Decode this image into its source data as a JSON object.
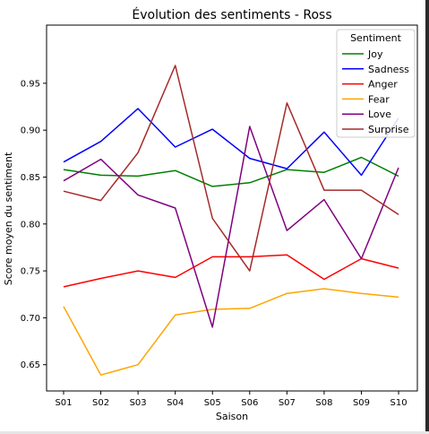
{
  "chart_data": {
    "type": "line",
    "title": "Évolution des sentiments - Ross",
    "xlabel": "Saison",
    "ylabel": "Score moyen du sentiment",
    "categories": [
      "S01",
      "S02",
      "S03",
      "S04",
      "S05",
      "S06",
      "S07",
      "S08",
      "S09",
      "S10"
    ],
    "ylim": [
      0.622,
      1.012
    ],
    "yticks": [
      "0.65",
      "0.70",
      "0.75",
      "0.80",
      "0.85",
      "0.90",
      "0.95"
    ],
    "grid": false,
    "legend": {
      "title": "Sentiment",
      "placement": "top-right"
    },
    "series": [
      {
        "name": "Joy",
        "color": "#008000",
        "values": [
          0.858,
          0.852,
          0.851,
          0.857,
          0.84,
          0.844,
          0.858,
          0.855,
          0.871,
          0.851
        ]
      },
      {
        "name": "Sadness",
        "color": "#0000ff",
        "values": [
          0.866,
          0.888,
          0.923,
          0.882,
          0.901,
          0.87,
          0.859,
          0.898,
          0.852,
          0.913
        ]
      },
      {
        "name": "Anger",
        "color": "#ff0000",
        "values": [
          0.733,
          0.742,
          0.75,
          0.743,
          0.765,
          0.765,
          0.767,
          0.741,
          0.763,
          0.753
        ]
      },
      {
        "name": "Fear",
        "color": "#ffa500",
        "values": [
          0.712,
          0.639,
          0.65,
          0.703,
          0.709,
          0.71,
          0.726,
          0.731,
          0.726,
          0.722
        ]
      },
      {
        "name": "Love",
        "color": "#800080",
        "values": [
          0.846,
          0.869,
          0.831,
          0.817,
          0.69,
          0.904,
          0.793,
          0.826,
          0.763,
          0.86
        ]
      },
      {
        "name": "Surprise",
        "color": "#a52a2a",
        "values": [
          0.835,
          0.825,
          0.876,
          0.969,
          0.806,
          0.75,
          0.929,
          0.836,
          0.836,
          0.81
        ]
      }
    ]
  }
}
